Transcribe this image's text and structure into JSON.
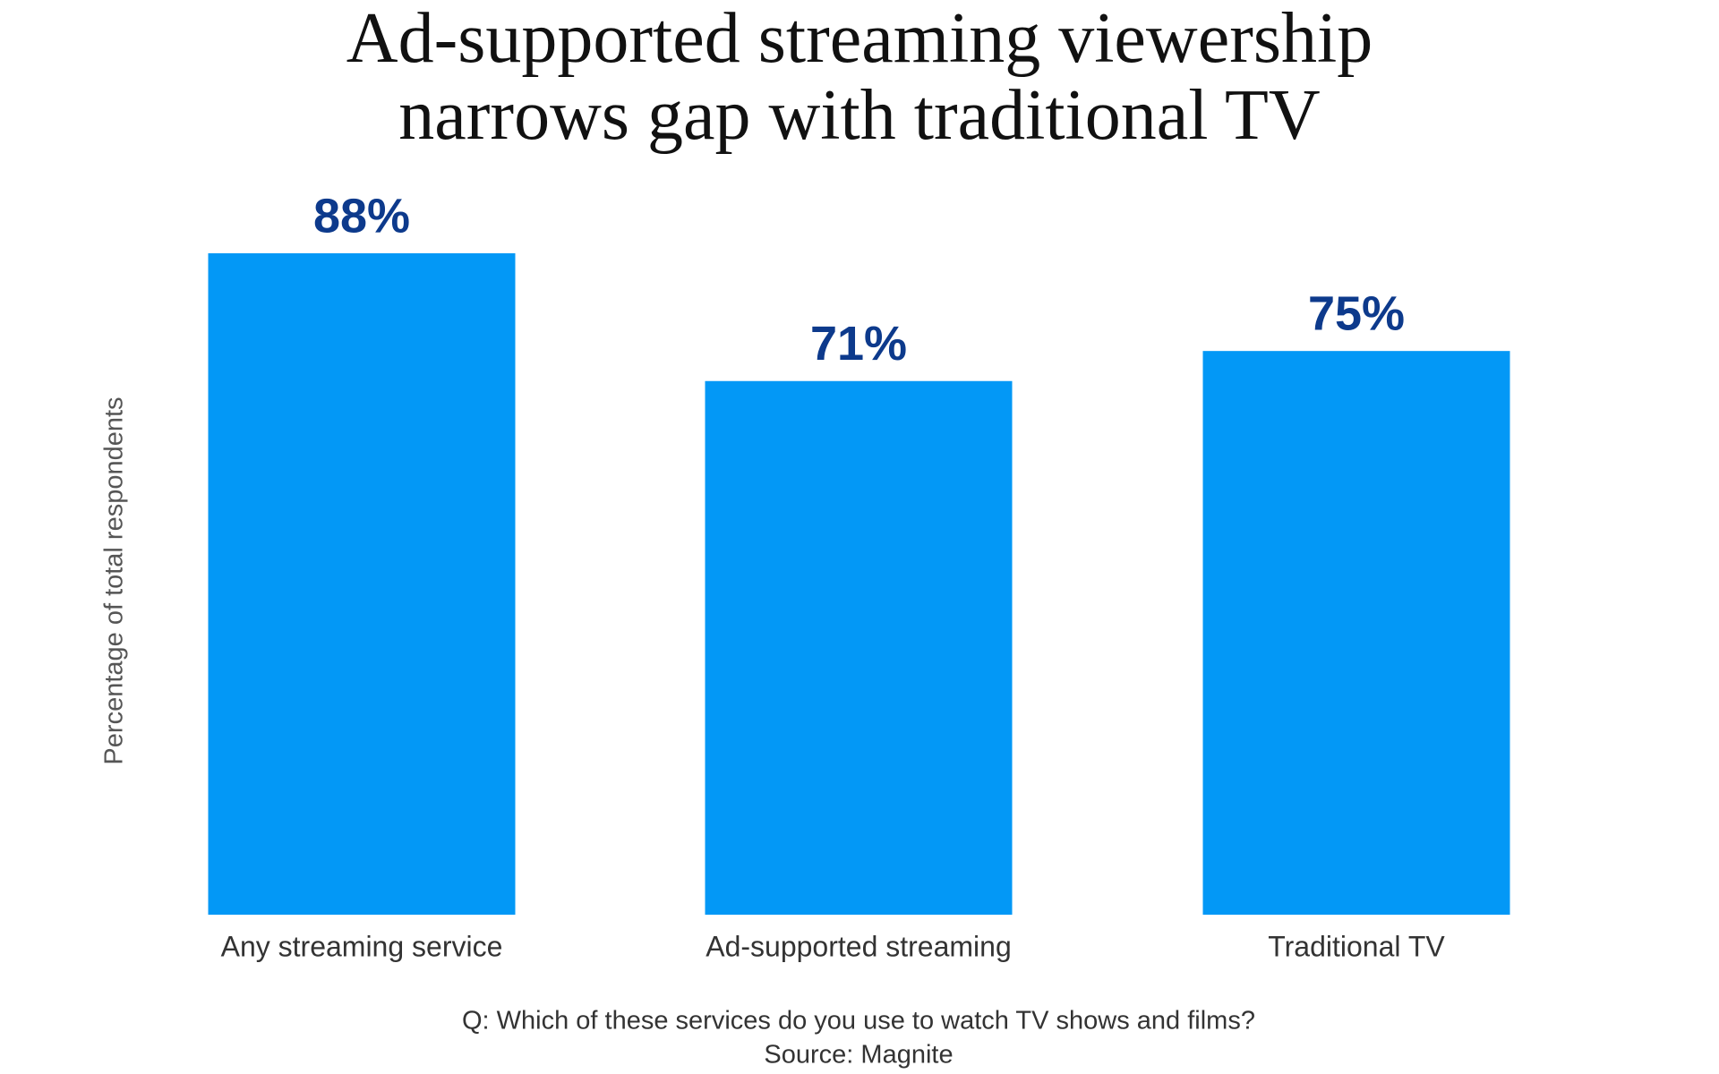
{
  "chart_data": {
    "type": "bar",
    "title": "Ad-supported streaming viewership narrows gap with traditional TV",
    "y_label": "Percentage of total respondents",
    "categories": [
      "Any streaming service",
      "Ad-supported streaming",
      "Traditional TV"
    ],
    "values": [
      88,
      71,
      75
    ],
    "value_labels": [
      "88%",
      "71%",
      "75%"
    ],
    "color": "#0398f6",
    "label_color": "#0d3a8c",
    "note": "Q: Which of these services do you use to watch TV shows and films?",
    "source": "Source: Magnite"
  }
}
